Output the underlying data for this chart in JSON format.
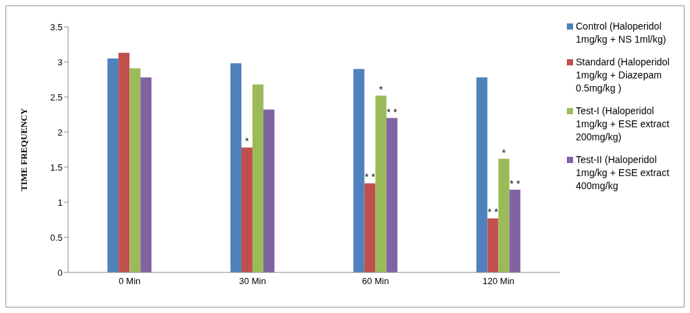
{
  "chart_data": {
    "type": "bar",
    "ylabel": "TIME FREQUENCY",
    "categories": [
      "0 Min",
      "30 Min",
      "60 Min",
      "120 Min"
    ],
    "series": [
      {
        "name": "Control (Haloperidol 1mg/kg + NS 1ml/kg)",
        "color": "#4f81bd",
        "values": [
          3.05,
          2.98,
          2.9,
          2.78
        ]
      },
      {
        "name": "Standard (Haloperidol 1mg/kg + Diazepam 0.5mg/kg )",
        "color": "#c0504d",
        "values": [
          3.13,
          1.78,
          1.27,
          0.77
        ]
      },
      {
        "name": "Test-I (Haloperidol 1mg/kg + ESE extract 200mg/kg)",
        "color": "#9bbb59",
        "values": [
          2.91,
          2.68,
          2.52,
          1.62
        ]
      },
      {
        "name": "Test-II (Haloperidol 1mg/kg + ESE extract 400mg/kg",
        "color": "#8064a2",
        "values": [
          2.78,
          2.32,
          2.2,
          1.18
        ]
      }
    ],
    "ylim": [
      0,
      3.5
    ],
    "yticks": [
      0,
      0.5,
      1,
      1.5,
      2,
      2.5,
      3,
      3.5
    ],
    "grid": false,
    "legend": "right",
    "annotations": [
      {
        "text": "*",
        "x": "30 Min",
        "y": 1.78
      },
      {
        "text": "* *",
        "x": "60 Min",
        "y": 1.27
      },
      {
        "text": "*",
        "x": "60 Min",
        "y": 2.52
      },
      {
        "text": "* *",
        "x": "60 Min",
        "y": 2.2
      },
      {
        "text": "* *",
        "x": "120 Min",
        "y": 0.77
      },
      {
        "text": "*",
        "x": "120 Min",
        "y": 1.62
      },
      {
        "text": "* *",
        "x": "120 Min",
        "y": 1.18
      }
    ]
  }
}
